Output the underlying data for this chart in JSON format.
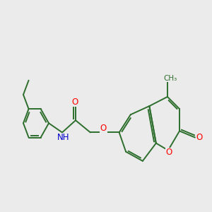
{
  "bg_color": "#ebebeb",
  "bond_color": "#2d6e2d",
  "bond_width": 1.4,
  "atom_colors": {
    "O": "#ff0000",
    "N": "#0000cc",
    "C": "#2d6e2d"
  },
  "font_size": 8.5
}
